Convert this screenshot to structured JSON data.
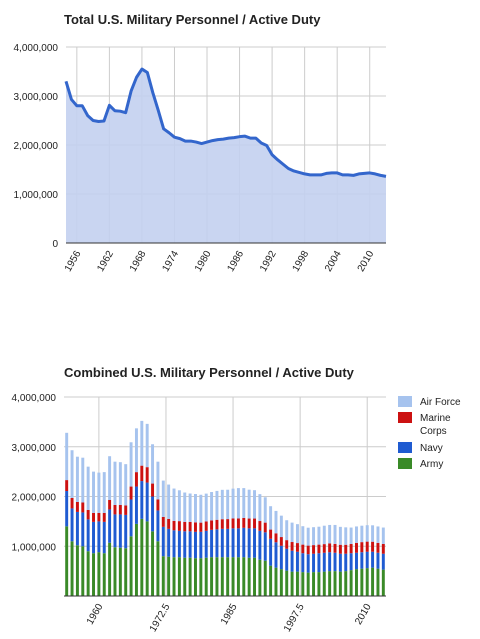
{
  "chart_data": [
    {
      "type": "area",
      "title": "Total U.S. Military Personnel / Active Duty",
      "ylim": [
        0,
        4000000
      ],
      "y_ticks": [
        0,
        1000000,
        2000000,
        3000000,
        4000000
      ],
      "y_tick_labels": [
        "0",
        "1,000,000",
        "2,000,000",
        "3,000,000",
        "4,000,000"
      ],
      "x_ticks": [
        1956,
        1962,
        1968,
        1974,
        1980,
        1986,
        1992,
        1998,
        2004,
        2010
      ],
      "x_tick_labels": [
        "1956",
        "1962",
        "1968",
        "1974",
        "1980",
        "1986",
        "1992",
        "1998",
        "2004",
        "2010"
      ],
      "grid": true,
      "colors": {
        "line": "#3366cc",
        "fill": "#c3d0ef"
      },
      "series": [
        {
          "x": [
            1954,
            1955,
            1956,
            1957,
            1958,
            1959,
            1960,
            1961,
            1962,
            1963,
            1964,
            1965,
            1966,
            1967,
            1968,
            1969,
            1970,
            1971,
            1972,
            1973,
            1974,
            1975,
            1976,
            1977,
            1978,
            1979,
            1980,
            1981,
            1982,
            1983,
            1984,
            1985,
            1986,
            1987,
            1988,
            1989,
            1990,
            1991,
            1992,
            1993,
            1994,
            1995,
            1996,
            1997,
            1998,
            1999,
            2000,
            2001,
            2002,
            2003,
            2004,
            2005,
            2006,
            2007,
            2008,
            2009,
            2010,
            2011,
            2012,
            2013
          ],
          "values": [
            3300000,
            2930000,
            2800000,
            2800000,
            2600000,
            2500000,
            2480000,
            2490000,
            2810000,
            2700000,
            2690000,
            2660000,
            3100000,
            3380000,
            3550000,
            3480000,
            3070000,
            2710000,
            2330000,
            2250000,
            2160000,
            2130000,
            2080000,
            2080000,
            2060000,
            2030000,
            2060000,
            2090000,
            2110000,
            2120000,
            2140000,
            2150000,
            2170000,
            2180000,
            2140000,
            2140000,
            2040000,
            1990000,
            1800000,
            1700000,
            1610000,
            1520000,
            1470000,
            1440000,
            1410000,
            1390000,
            1390000,
            1390000,
            1420000,
            1430000,
            1430000,
            1390000,
            1390000,
            1380000,
            1410000,
            1420000,
            1430000,
            1410000,
            1380000,
            1360000
          ]
        }
      ]
    },
    {
      "type": "bar",
      "stacked": true,
      "title": "Combined U.S. Military Personnel / Active Duty",
      "ylim": [
        0,
        4000000
      ],
      "y_ticks": [
        1000000,
        2000000,
        3000000,
        4000000
      ],
      "y_tick_labels": [
        "1,000,000",
        "2,000,000",
        "3,000,000",
        "4,000,000"
      ],
      "x_ticks": [
        1960,
        1972.5,
        1985,
        1997.5,
        2010
      ],
      "x_tick_labels": [
        "1960",
        "1972.5",
        "1985",
        "1997.5",
        "2010"
      ],
      "xlim": [
        1953.5,
        2013.5
      ],
      "grid": true,
      "legend": "right",
      "x": [
        1954,
        1955,
        1956,
        1957,
        1958,
        1959,
        1960,
        1961,
        1962,
        1963,
        1964,
        1965,
        1966,
        1967,
        1968,
        1969,
        1970,
        1971,
        1972,
        1973,
        1974,
        1975,
        1976,
        1977,
        1978,
        1979,
        1980,
        1981,
        1982,
        1983,
        1984,
        1985,
        1986,
        1987,
        1988,
        1989,
        1990,
        1991,
        1992,
        1993,
        1994,
        1995,
        1996,
        1997,
        1998,
        1999,
        2000,
        2001,
        2002,
        2003,
        2004,
        2005,
        2006,
        2007,
        2008,
        2009,
        2010,
        2011,
        2012,
        2013
      ],
      "series": [
        {
          "name": "Army",
          "color": "#3a8a28",
          "values": [
            1400000,
            1100000,
            1020000,
            1000000,
            900000,
            860000,
            880000,
            860000,
            1070000,
            980000,
            970000,
            960000,
            1200000,
            1450000,
            1550000,
            1500000,
            1300000,
            1100000,
            800000,
            790000,
            780000,
            780000,
            770000,
            770000,
            760000,
            760000,
            770000,
            780000,
            780000,
            780000,
            780000,
            780000,
            780000,
            780000,
            770000,
            770000,
            730000,
            710000,
            610000,
            570000,
            540000,
            510000,
            490000,
            490000,
            480000,
            470000,
            480000,
            480000,
            490000,
            500000,
            500000,
            490000,
            500000,
            520000,
            540000,
            550000,
            560000,
            570000,
            550000,
            530000
          ]
        },
        {
          "name": "Navy",
          "color": "#1f5bd1",
          "values": [
            710000,
            660000,
            670000,
            680000,
            640000,
            630000,
            620000,
            630000,
            670000,
            660000,
            670000,
            670000,
            740000,
            750000,
            760000,
            780000,
            700000,
            620000,
            590000,
            560000,
            540000,
            530000,
            530000,
            530000,
            530000,
            530000,
            540000,
            550000,
            560000,
            570000,
            570000,
            580000,
            580000,
            590000,
            590000,
            590000,
            580000,
            570000,
            540000,
            510000,
            470000,
            440000,
            420000,
            400000,
            380000,
            370000,
            370000,
            380000,
            380000,
            380000,
            370000,
            360000,
            350000,
            340000,
            330000,
            330000,
            330000,
            320000,
            320000,
            320000
          ]
        },
        {
          "name": "Marine Corps",
          "color": "#cc1111",
          "values": [
            220000,
            210000,
            200000,
            200000,
            190000,
            180000,
            170000,
            180000,
            190000,
            190000,
            190000,
            190000,
            260000,
            290000,
            310000,
            310000,
            260000,
            220000,
            200000,
            200000,
            190000,
            195000,
            190000,
            190000,
            190000,
            185000,
            188000,
            190000,
            192000,
            194000,
            196000,
            198000,
            199000,
            199000,
            197000,
            197000,
            197000,
            195000,
            185000,
            180000,
            175000,
            173000,
            175000,
            174000,
            173000,
            173000,
            173000,
            173000,
            173000,
            178000,
            178000,
            180000,
            180000,
            186000,
            198000,
            203000,
            203000,
            201000,
            198000,
            196000
          ]
        },
        {
          "name": "Air Force",
          "color": "#a6c3ee",
          "values": [
            950000,
            960000,
            910000,
            900000,
            870000,
            830000,
            810000,
            820000,
            880000,
            870000,
            860000,
            830000,
            890000,
            880000,
            900000,
            870000,
            790000,
            760000,
            730000,
            690000,
            650000,
            620000,
            590000,
            570000,
            570000,
            560000,
            560000,
            570000,
            580000,
            590000,
            590000,
            600000,
            610000,
            600000,
            580000,
            570000,
            540000,
            510000,
            470000,
            450000,
            430000,
            400000,
            390000,
            380000,
            370000,
            360000,
            360000,
            360000,
            370000,
            370000,
            380000,
            360000,
            350000,
            330000,
            330000,
            330000,
            330000,
            330000,
            330000,
            330000
          ]
        }
      ]
    }
  ]
}
